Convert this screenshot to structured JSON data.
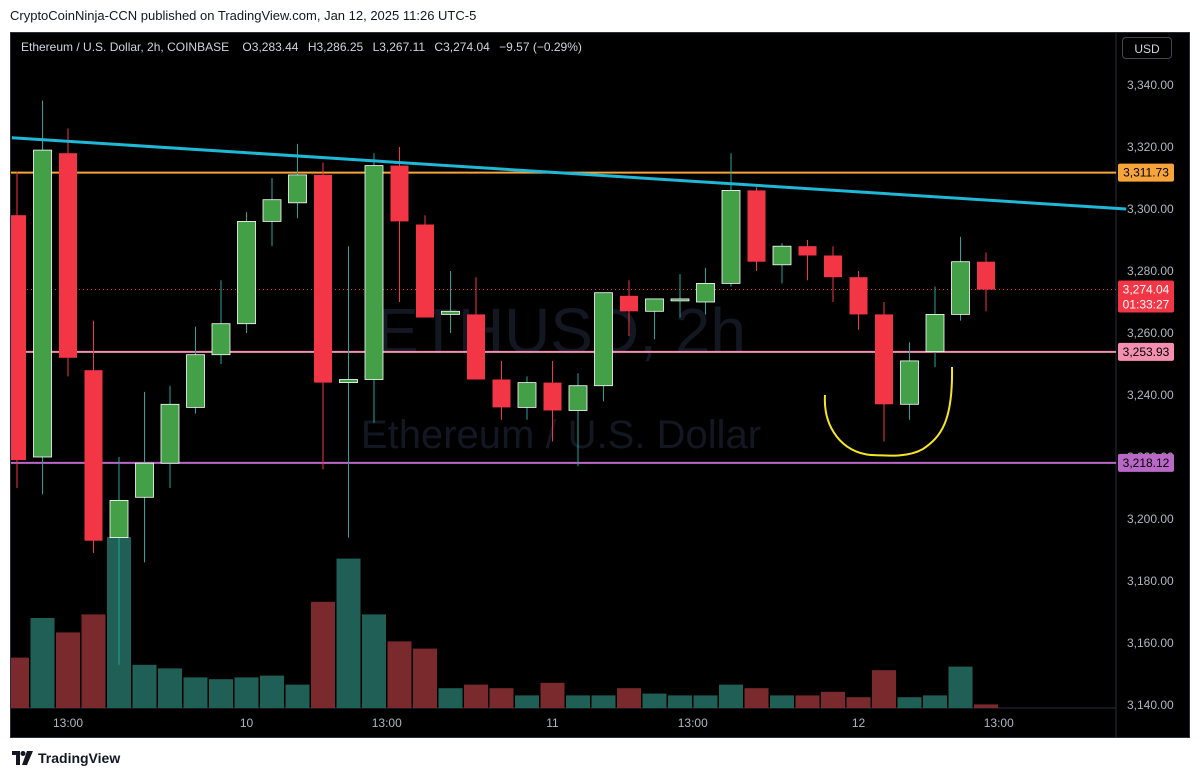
{
  "header": {
    "published_text": "CryptoCoinNinja-CCN published on TradingView.com, Jan 12, 2025 11:26 UTC-5"
  },
  "legend": {
    "symbol": "Ethereum / U.S. Dollar, 2h, COINBASE",
    "open_label": "O",
    "open": "3,283.44",
    "high_label": "H",
    "high": "3,286.25",
    "low_label": "L",
    "low": "3,267.11",
    "close_label": "C",
    "close": "3,274.04",
    "change": "−9.57 (−0.29%)"
  },
  "currency_button": "USD",
  "watermark": {
    "line1": "ETHUSD, 2h",
    "line2": "Ethereum / U.S. Dollar"
  },
  "footer": {
    "brand": "TradingView"
  },
  "colors": {
    "up": "#26a69a",
    "up_body": "#43a047",
    "down": "#f23645",
    "trendline": "#1fb8d6",
    "resistance": "#f7a43a",
    "support_pink": "#f48fb1",
    "support_purple": "#ba68c8",
    "annotation": "#f5e625",
    "current_price": "#f23645"
  },
  "chart_data": {
    "type": "candlestick",
    "symbol": "ETHUSD",
    "interval": "2h",
    "ylim": [
      3135,
      3345
    ],
    "y_ticks": [
      "3,340.00",
      "3,320.00",
      "3,300.00",
      "3,280.00",
      "3,260.00",
      "3,240.00",
      "3,220.00",
      "3,200.00",
      "3,180.00",
      "3,160.00",
      "3,140.00"
    ],
    "y_tick_values": [
      3340,
      3320,
      3300,
      3280,
      3260,
      3240,
      3220,
      3200,
      3180,
      3160,
      3140
    ],
    "x_labels": [
      "13:00",
      "10",
      "13:00",
      "11",
      "13:00",
      "12",
      "13:00"
    ],
    "x_label_index": [
      2,
      9,
      14.5,
      21,
      26.5,
      33,
      38.5
    ],
    "n_slots": 44,
    "candles": [
      {
        "o": 3298,
        "h": 3312,
        "l": 3210,
        "c": 3219
      },
      {
        "o": 3220,
        "h": 3335,
        "l": 3208,
        "c": 3319
      },
      {
        "o": 3318,
        "h": 3326,
        "l": 3246,
        "c": 3252
      },
      {
        "o": 3248,
        "h": 3264,
        "l": 3189,
        "c": 3193
      },
      {
        "o": 3194,
        "h": 3220,
        "l": 3153,
        "c": 3206
      },
      {
        "o": 3207,
        "h": 3241,
        "l": 3186,
        "c": 3218
      },
      {
        "o": 3218,
        "h": 3243,
        "l": 3210,
        "c": 3237
      },
      {
        "o": 3236,
        "h": 3262,
        "l": 3234,
        "c": 3253
      },
      {
        "o": 3253,
        "h": 3277,
        "l": 3250,
        "c": 3263
      },
      {
        "o": 3263,
        "h": 3299,
        "l": 3260,
        "c": 3296
      },
      {
        "o": 3296,
        "h": 3310,
        "l": 3288,
        "c": 3303
      },
      {
        "o": 3302,
        "h": 3321,
        "l": 3297,
        "c": 3311
      },
      {
        "o": 3311,
        "h": 3315,
        "l": 3216,
        "c": 3244
      },
      {
        "o": 3244,
        "h": 3288,
        "l": 3194,
        "c": 3245
      },
      {
        "o": 3245,
        "h": 3318,
        "l": 3231,
        "c": 3314
      },
      {
        "o": 3314,
        "h": 3320,
        "l": 3270,
        "c": 3296
      },
      {
        "o": 3295,
        "h": 3298,
        "l": 3265,
        "c": 3265
      },
      {
        "o": 3266,
        "h": 3280,
        "l": 3260,
        "c": 3267
      },
      {
        "o": 3266,
        "h": 3278,
        "l": 3245,
        "c": 3245
      },
      {
        "o": 3245,
        "h": 3251,
        "l": 3232,
        "c": 3236
      },
      {
        "o": 3236,
        "h": 3246,
        "l": 3232,
        "c": 3244
      },
      {
        "o": 3244,
        "h": 3251,
        "l": 3225,
        "c": 3235
      },
      {
        "o": 3235,
        "h": 3247,
        "l": 3217,
        "c": 3243
      },
      {
        "o": 3243,
        "h": 3273,
        "l": 3238,
        "c": 3273
      },
      {
        "o": 3272,
        "h": 3277,
        "l": 3259,
        "c": 3267
      },
      {
        "o": 3267,
        "h": 3271,
        "l": 3258,
        "c": 3271
      },
      {
        "o": 3271,
        "h": 3279,
        "l": 3265,
        "c": 3271
      },
      {
        "o": 3270,
        "h": 3281,
        "l": 3266,
        "c": 3276
      },
      {
        "o": 3276,
        "h": 3318,
        "l": 3275,
        "c": 3306
      },
      {
        "o": 3306,
        "h": 3307,
        "l": 3280,
        "c": 3283
      },
      {
        "o": 3282,
        "h": 3289,
        "l": 3276,
        "c": 3288
      },
      {
        "o": 3288,
        "h": 3290,
        "l": 3277,
        "c": 3285
      },
      {
        "o": 3285,
        "h": 3288,
        "l": 3270,
        "c": 3278
      },
      {
        "o": 3278,
        "h": 3280,
        "l": 3261,
        "c": 3266
      },
      {
        "o": 3266,
        "h": 3270,
        "l": 3225,
        "c": 3237
      },
      {
        "o": 3237,
        "h": 3257,
        "l": 3232,
        "c": 3251
      },
      {
        "o": 3254,
        "h": 3275,
        "l": 3249,
        "c": 3266
      },
      {
        "o": 3266,
        "h": 3291,
        "l": 3264,
        "c": 3283
      },
      {
        "o": 3283,
        "h": 3286,
        "l": 3267,
        "c": 3274
      }
    ],
    "volumes": [
      0.28,
      0.5,
      0.42,
      0.52,
      0.95,
      0.24,
      0.22,
      0.17,
      0.16,
      0.17,
      0.18,
      0.13,
      0.59,
      0.83,
      0.52,
      0.37,
      0.33,
      0.11,
      0.13,
      0.11,
      0.07,
      0.14,
      0.07,
      0.07,
      0.11,
      0.08,
      0.07,
      0.07,
      0.13,
      0.11,
      0.07,
      0.07,
      0.09,
      0.06,
      0.21,
      0.06,
      0.07,
      0.23,
      0.02
    ],
    "trendline": {
      "from": {
        "index": -0.2,
        "price": 3323
      },
      "to": {
        "index": 43.5,
        "price": 3300
      }
    },
    "horizontal_lines": [
      {
        "price": 3311.73,
        "label": "3,311.73",
        "color": "#f7a43a"
      },
      {
        "price": 3253.93,
        "label": "3,253.93",
        "color": "#f48fb1"
      },
      {
        "price": 3218.12,
        "label": "3,218.12",
        "color": "#ba68c8"
      }
    ],
    "current_price": {
      "price": 3274.04,
      "label": "3,274.04",
      "countdown": "01:33:27"
    }
  }
}
